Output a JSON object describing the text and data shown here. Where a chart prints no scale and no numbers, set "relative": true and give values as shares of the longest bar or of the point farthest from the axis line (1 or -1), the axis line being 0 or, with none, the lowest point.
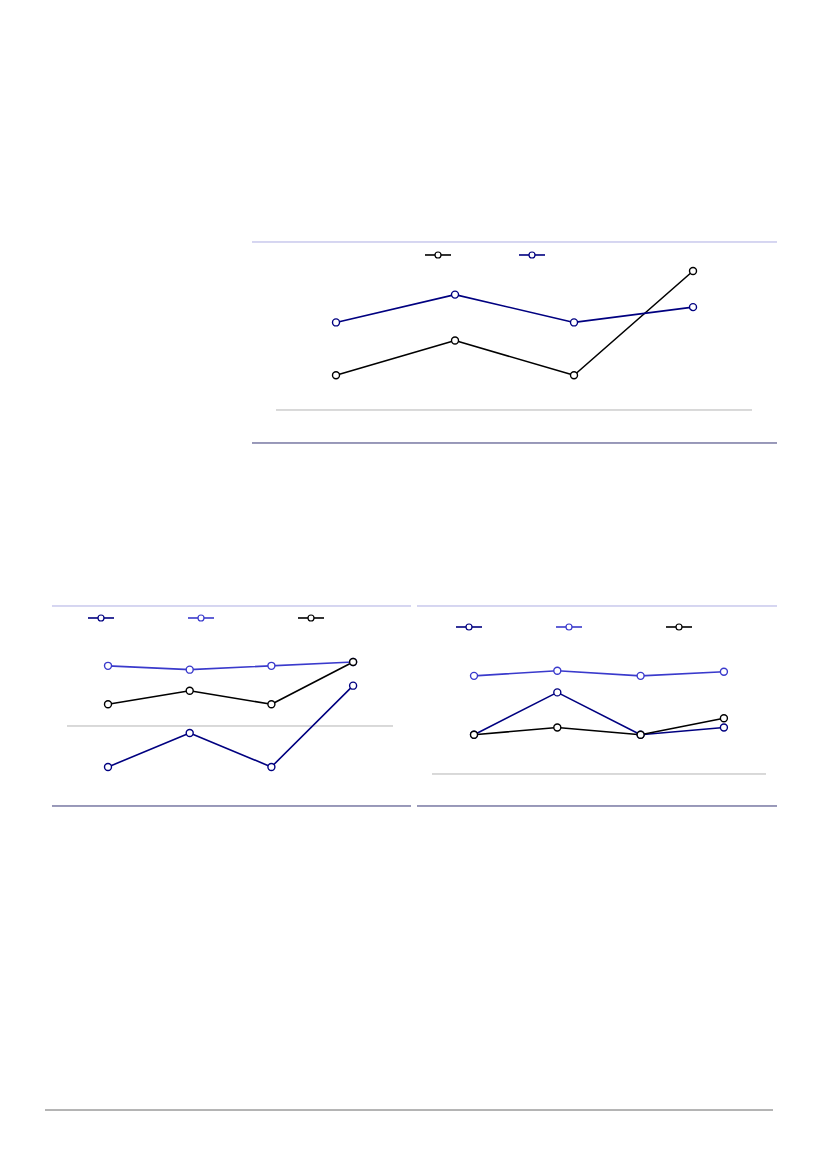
{
  "chart_data": [
    {
      "type": "line",
      "relative": true,
      "categories": [
        null,
        null,
        null,
        null
      ],
      "marker": "circle",
      "series": [
        {
          "color": "#000000",
          "values": [
            0.25,
            0.5,
            0.25,
            1
          ]
        },
        {
          "color": "#000080",
          "values": [
            0.63,
            0.83,
            0.63,
            0.74
          ]
        }
      ]
    },
    {
      "type": "line",
      "relative": true,
      "categories": [
        null,
        null,
        null,
        null
      ],
      "marker": "circle",
      "series": [
        {
          "color": "#000080",
          "values": [
            -0.64,
            -0.11,
            -0.64,
            0.63
          ]
        },
        {
          "color": "#3a3acc",
          "values": [
            0.94,
            0.88,
            0.94,
            1
          ]
        },
        {
          "color": "#000000",
          "values": [
            0.34,
            0.55,
            0.34,
            1
          ]
        }
      ]
    },
    {
      "type": "line",
      "relative": true,
      "categories": [
        null,
        null,
        null,
        null
      ],
      "marker": "circle",
      "series": [
        {
          "color": "#000080",
          "values": [
            0.38,
            0.79,
            0.38,
            0.45
          ]
        },
        {
          "color": "#3a3acc",
          "values": [
            0.95,
            1,
            0.95,
            0.99
          ]
        },
        {
          "color": "#000000",
          "values": [
            0.38,
            0.45,
            0.38,
            0.54
          ]
        }
      ]
    }
  ]
}
